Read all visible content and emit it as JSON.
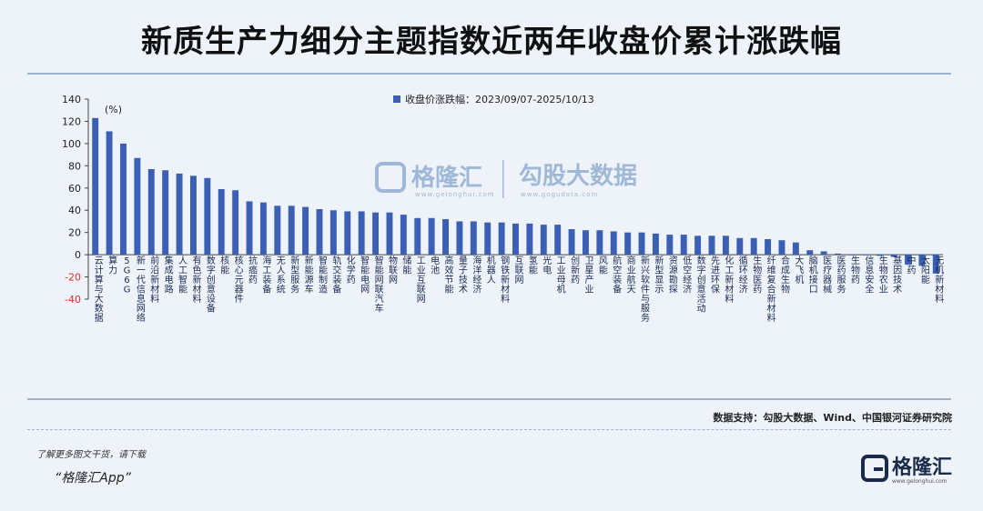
{
  "title": "新质生产力细分主题指数近两年收盘价累计涨跌幅",
  "source": "数据支持：勾股大数据、Wind、中国银河证券研究院",
  "footer": {
    "note": "了解更多图文干货，请下载",
    "app": "“格隆汇App”",
    "brand": "格隆汇",
    "brand_sub": "www.gelonghui.com"
  },
  "watermark": {
    "left_name": "格隆汇",
    "left_url": "www.gelonghui.com",
    "right_name": "勾股大数据",
    "right_url": "www.gogudata.com"
  },
  "colors": {
    "bar": "#3a5fb5",
    "negative_tick": "#d9302b",
    "rule": "#9db3cf"
  },
  "chart_data": {
    "type": "bar",
    "unit_label": "(%)",
    "legend": "收盘价涨跌幅：2023/09/07-2025/10/13",
    "legend_position": "top-center",
    "ylim": [
      -40,
      140
    ],
    "yticks": [
      140,
      120,
      100,
      80,
      60,
      40,
      20,
      0,
      -20,
      -40
    ],
    "categories": [
      "云计算与大数据",
      "算力",
      "5G6G",
      "新一代信息网络",
      "前沿新材料",
      "集成电路",
      "人工智能",
      "有色新材料",
      "数字创意设备",
      "核能",
      "核心元器件",
      "抗癌药",
      "海工装备",
      "无人系统",
      "新型服务",
      "新能源车",
      "智能制造",
      "轨交装备",
      "化学药",
      "智能电网",
      "智能网联汽车",
      "物联网",
      "储能",
      "工业互联网",
      "电池",
      "高效节能",
      "量子技术",
      "海洋经济",
      "机器人",
      "钢铁新材料",
      "互联网",
      "氢能",
      "光电",
      "工业母机",
      "创新药",
      "卫星产业",
      "风能",
      "航空装备",
      "商业航天",
      "新兴软件与服务",
      "新型显示",
      "资源勘探",
      "低空经济",
      "数字创意活动",
      "先进环保",
      "化工新材料",
      "循环经济",
      "生物医药",
      "纤维复合新材料",
      "合成生物",
      "大飞机",
      "脑机接口",
      "医疗器械",
      "医药服务",
      "生物药",
      "信息安全",
      "生物农业",
      "基因技术",
      "中药",
      "太阳能",
      "无机新材料"
    ],
    "values": [
      123,
      111,
      100,
      87,
      77,
      76,
      73,
      71,
      69,
      59,
      58,
      48,
      47,
      44,
      44,
      43,
      41,
      40,
      39,
      39,
      38,
      38,
      36,
      33,
      33,
      32,
      30,
      30,
      29,
      29,
      28,
      28,
      27,
      27,
      23,
      22,
      22,
      21,
      20,
      20,
      19,
      18,
      18,
      17,
      17,
      17,
      15,
      15,
      14,
      13,
      11,
      4,
      3,
      1,
      0,
      0,
      -1,
      -2,
      -9,
      -10,
      -17
    ]
  }
}
